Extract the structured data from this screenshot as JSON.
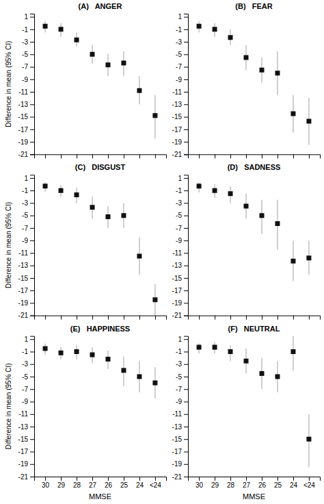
{
  "chart_data": [
    {
      "type": "scatter",
      "title": "(A)   ANGER",
      "ylabel": "Difference in mean (95% CI)",
      "categories": [
        null,
        null,
        null,
        null,
        null,
        null,
        null,
        null
      ],
      "values": [
        -0.5,
        -1.0,
        -2.7,
        -5.0,
        -6.7,
        -6.4,
        -10.8,
        -14.8
      ],
      "lower": [
        -1.5,
        -2.2,
        -3.8,
        -6.5,
        -8.5,
        -8.5,
        -13.0,
        -18.5
      ],
      "upper": [
        0.3,
        0.0,
        -1.5,
        -3.5,
        -4.9,
        -4.5,
        -8.5,
        -11.5
      ],
      "ylim": [
        -21,
        1.5
      ],
      "yticks": [
        1,
        -1,
        -3,
        -5,
        -7,
        -9,
        -11,
        -13,
        -15,
        -17,
        -19,
        -21
      ],
      "color": "#111111",
      "marker": "square",
      "grid": false
    },
    {
      "type": "scatter",
      "title": "(B)   FEAR",
      "categories": [
        null,
        null,
        null,
        null,
        null,
        null,
        null,
        null
      ],
      "values": [
        -0.5,
        -1.0,
        -2.3,
        -5.5,
        -7.5,
        -8.0,
        -14.5,
        -15.7
      ],
      "lower": [
        -1.5,
        -2.2,
        -3.5,
        -7.5,
        -9.5,
        -11.5,
        -17.5,
        -19.5
      ],
      "upper": [
        0.3,
        0.0,
        -1.0,
        -3.5,
        -5.5,
        -4.5,
        -11.5,
        -12.0
      ],
      "ylim": [
        -21,
        1.5
      ],
      "yticks": [
        1,
        -1,
        -3,
        -5,
        -7,
        -9,
        -11,
        -13,
        -15,
        -17,
        -19,
        -21
      ],
      "color": "#111111",
      "marker": "square",
      "grid": false
    },
    {
      "type": "scatter",
      "title": "(C)   DISGUST",
      "ylabel": "Difference in mean (95% CI)",
      "categories": [
        null,
        null,
        null,
        null,
        null,
        null,
        null,
        null
      ],
      "values": [
        -0.3,
        -1.0,
        -1.7,
        -3.7,
        -5.2,
        -5.0,
        -11.5,
        -18.5
      ],
      "lower": [
        -1.2,
        -2.0,
        -3.0,
        -5.5,
        -7.0,
        -7.0,
        -14.5,
        -21.0
      ],
      "upper": [
        0.3,
        -0.1,
        -0.5,
        -2.0,
        -3.5,
        -3.0,
        -8.5,
        -16.0
      ],
      "ylim": [
        -21,
        1.5
      ],
      "yticks": [
        1,
        -1,
        -3,
        -5,
        -7,
        -9,
        -11,
        -13,
        -15,
        -17,
        -19,
        -21
      ],
      "color": "#111111",
      "marker": "square",
      "grid": false
    },
    {
      "type": "scatter",
      "title": "(D)   SADNESS",
      "categories": [
        null,
        null,
        null,
        null,
        null,
        null,
        null,
        null
      ],
      "values": [
        -0.3,
        -1.0,
        -1.5,
        -3.5,
        -5.0,
        -6.3,
        -12.3,
        -11.8
      ],
      "lower": [
        -1.3,
        -2.2,
        -3.0,
        -5.5,
        -8.0,
        -10.5,
        -15.5,
        -14.5
      ],
      "upper": [
        0.3,
        0.0,
        -0.3,
        -1.5,
        -2.5,
        -2.5,
        -9.0,
        -9.0
      ],
      "ylim": [
        -21,
        1.5
      ],
      "yticks": [
        1,
        -1,
        -3,
        -5,
        -7,
        -9,
        -11,
        -13,
        -15,
        -17,
        -19,
        -21
      ],
      "color": "#111111",
      "marker": "square",
      "grid": false
    },
    {
      "type": "scatter",
      "title": "(E)   HAPPINESS",
      "xlabel": "MMSE",
      "ylabel": "Difference in mean (95% CI)",
      "categories": [
        "30",
        "29",
        "28",
        "27",
        "26",
        "25",
        "24",
        "<24"
      ],
      "values": [
        -0.5,
        -1.2,
        -1.0,
        -1.5,
        -2.2,
        -4.0,
        -5.0,
        -6.0
      ],
      "lower": [
        -1.5,
        -2.2,
        -2.2,
        -2.8,
        -3.8,
        -6.5,
        -7.5,
        -8.5
      ],
      "upper": [
        0.3,
        -0.3,
        0.0,
        -0.3,
        -0.8,
        -1.8,
        -2.5,
        -3.5
      ],
      "ylim": [
        -21,
        1.5
      ],
      "yticks": [
        1,
        -1,
        -3,
        -5,
        -7,
        -9,
        -11,
        -13,
        -15,
        -17,
        -19,
        -21
      ],
      "color": "#111111",
      "marker": "square",
      "grid": false
    },
    {
      "type": "scatter",
      "title": "(F)   NEUTRAL",
      "xlabel": "MMSE",
      "categories": [
        "30",
        "29",
        "28",
        "27",
        "26",
        "25",
        "24",
        "<24"
      ],
      "values": [
        -0.3,
        -0.3,
        -1.0,
        -2.5,
        -4.5,
        -5.0,
        -1.0,
        -15.0
      ],
      "lower": [
        -1.3,
        -1.3,
        -2.5,
        -4.5,
        -7.0,
        -7.5,
        -4.0,
        -19.5
      ],
      "upper": [
        0.3,
        0.5,
        0.0,
        -0.5,
        -2.0,
        -2.5,
        1.5,
        -11.0
      ],
      "ylim": [
        -21,
        1.5
      ],
      "yticks": [
        1,
        -1,
        -3,
        -5,
        -7,
        -9,
        -11,
        -13,
        -15,
        -17,
        -19,
        -21
      ],
      "color": "#111111",
      "marker": "square",
      "grid": false
    }
  ]
}
